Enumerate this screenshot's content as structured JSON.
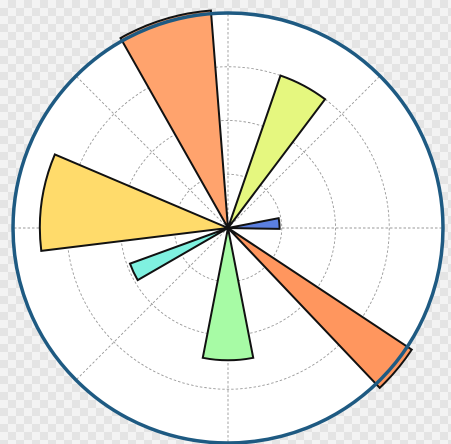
{
  "chart_data": {
    "type": "polar-bar",
    "title": "",
    "grid": true,
    "rmax": 200,
    "r_gridlines": [
      50,
      100,
      150,
      200
    ],
    "theta_gridlines_deg": [
      0,
      45,
      90,
      135,
      180,
      225,
      270,
      315
    ],
    "axis_color": "#1e5a82",
    "grid_color": "#9a9a9a",
    "bar_edge_color": "#111111",
    "bars": [
      {
        "angle_deg": 5,
        "width_deg": 12,
        "radius": 48,
        "color": "#5b7fe0"
      },
      {
        "angle_deg": 62,
        "width_deg": 18,
        "radius": 150,
        "color": "#e5f77f"
      },
      {
        "angle_deg": 107,
        "width_deg": 25,
        "radius": 203,
        "color": "#ffa36d"
      },
      {
        "angle_deg": 172,
        "width_deg": 30,
        "radius": 175,
        "color": "#ffdb6b"
      },
      {
        "angle_deg": 205,
        "width_deg": 10,
        "radius": 97,
        "color": "#7ff1e0"
      },
      {
        "angle_deg": 270,
        "width_deg": 22,
        "radius": 123,
        "color": "#a7fba5"
      },
      {
        "angle_deg": 320,
        "width_deg": 13,
        "radius": 205,
        "color": "#ff965e"
      }
    ]
  }
}
